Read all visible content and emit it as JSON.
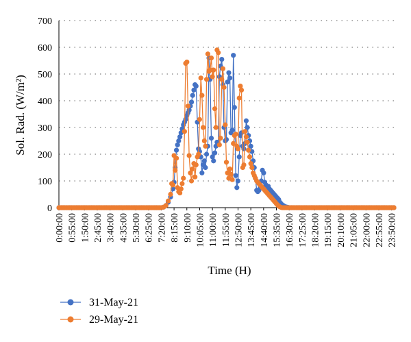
{
  "chart_data": {
    "type": "line",
    "title": "",
    "xlabel": "Time (H)",
    "ylabel": "Sol. Rad. (W/m²)",
    "ylim": [
      0,
      700
    ],
    "yticks": [
      "0",
      "100",
      "200",
      "300",
      "400",
      "500",
      "600",
      "700"
    ],
    "x_tick_labels": [
      "0:00:00",
      "0:55:00",
      "1:50:00",
      "2:45:00",
      "3:40:00",
      "4:35:00",
      "5:30:00",
      "6:25:00",
      "7:20:00",
      "8:15:00",
      "9:10:00",
      "10:05:00",
      "11:00:00",
      "11:55:00",
      "12:50:00",
      "13:45:00",
      "14:40:00",
      "15:35:00",
      "16:30:00",
      "17:25:00",
      "18:20:00",
      "19:15:00",
      "20:10:00",
      "21:05:00",
      "22:00:00",
      "22:55:00",
      "23:50:00"
    ],
    "x_unit": "hours of day (0-24), sampled every 5 min",
    "grid": "horizontal dotted",
    "legend_position": "bottom-left",
    "series": [
      {
        "name": "31-May-21",
        "color": "#4472c4",
        "points": [
          [
            0,
            0
          ],
          [
            7.33,
            0
          ],
          [
            7.5,
            2
          ],
          [
            7.67,
            8
          ],
          [
            7.83,
            20
          ],
          [
            8.0,
            40
          ],
          [
            8.17,
            70
          ],
          [
            8.25,
            95
          ],
          [
            8.33,
            150
          ],
          [
            8.42,
            215
          ],
          [
            8.5,
            235
          ],
          [
            8.58,
            250
          ],
          [
            8.67,
            265
          ],
          [
            8.75,
            280
          ],
          [
            8.83,
            295
          ],
          [
            8.92,
            310
          ],
          [
            9.0,
            320
          ],
          [
            9.08,
            330
          ],
          [
            9.17,
            345
          ],
          [
            9.25,
            355
          ],
          [
            9.33,
            365
          ],
          [
            9.42,
            380
          ],
          [
            9.5,
            395
          ],
          [
            9.58,
            420
          ],
          [
            9.67,
            440
          ],
          [
            9.75,
            460
          ],
          [
            9.83,
            455
          ],
          [
            9.92,
            320
          ],
          [
            10.0,
            220
          ],
          [
            10.08,
            210
          ],
          [
            10.17,
            190
          ],
          [
            10.25,
            130
          ],
          [
            10.33,
            160
          ],
          [
            10.42,
            175
          ],
          [
            10.5,
            150
          ],
          [
            10.58,
            200
          ],
          [
            10.67,
            230
          ],
          [
            10.75,
            560
          ],
          [
            10.83,
            480
          ],
          [
            10.92,
            260
          ],
          [
            11.0,
            190
          ],
          [
            11.08,
            175
          ],
          [
            11.17,
            205
          ],
          [
            11.25,
            230
          ],
          [
            11.33,
            245
          ],
          [
            11.42,
            240
          ],
          [
            11.5,
            490
          ],
          [
            11.58,
            530
          ],
          [
            11.67,
            555
          ],
          [
            11.75,
            460
          ],
          [
            11.83,
            300
          ],
          [
            11.92,
            250
          ],
          [
            12.0,
            255
          ],
          [
            12.08,
            470
          ],
          [
            12.17,
            505
          ],
          [
            12.25,
            485
          ],
          [
            12.33,
            280
          ],
          [
            12.42,
            290
          ],
          [
            12.5,
            570
          ],
          [
            12.58,
            375
          ],
          [
            12.67,
            120
          ],
          [
            12.75,
            75
          ],
          [
            12.83,
            100
          ],
          [
            12.92,
            190
          ],
          [
            13.0,
            270
          ],
          [
            13.08,
            280
          ],
          [
            13.17,
            230
          ],
          [
            13.25,
            220
          ],
          [
            13.33,
            240
          ],
          [
            13.42,
            325
          ],
          [
            13.5,
            300
          ],
          [
            13.58,
            270
          ],
          [
            13.67,
            250
          ],
          [
            13.75,
            230
          ],
          [
            13.83,
            210
          ],
          [
            13.92,
            175
          ],
          [
            14.0,
            150
          ],
          [
            14.08,
            110
          ],
          [
            14.17,
            65
          ],
          [
            14.25,
            60
          ],
          [
            14.33,
            65
          ],
          [
            14.42,
            75
          ],
          [
            14.5,
            100
          ],
          [
            14.58,
            140
          ],
          [
            14.67,
            130
          ],
          [
            14.75,
            95
          ],
          [
            14.83,
            85
          ],
          [
            14.92,
            75
          ],
          [
            15.0,
            80
          ],
          [
            15.08,
            70
          ],
          [
            15.17,
            65
          ],
          [
            15.25,
            60
          ],
          [
            15.33,
            55
          ],
          [
            15.42,
            50
          ],
          [
            15.5,
            45
          ],
          [
            15.58,
            40
          ],
          [
            15.67,
            35
          ],
          [
            15.75,
            30
          ],
          [
            15.83,
            20
          ],
          [
            15.92,
            15
          ],
          [
            16.0,
            10
          ],
          [
            16.08,
            8
          ],
          [
            16.17,
            5
          ],
          [
            16.25,
            3
          ],
          [
            16.33,
            2
          ],
          [
            16.42,
            1
          ],
          [
            16.5,
            0
          ],
          [
            24,
            0
          ]
        ]
      },
      {
        "name": "29-May-21",
        "color": "#ed7d31",
        "points": [
          [
            0,
            0
          ],
          [
            7.33,
            0
          ],
          [
            7.5,
            2
          ],
          [
            7.67,
            8
          ],
          [
            7.83,
            25
          ],
          [
            8.0,
            50
          ],
          [
            8.08,
            90
          ],
          [
            8.17,
            85
          ],
          [
            8.25,
            195
          ],
          [
            8.33,
            140
          ],
          [
            8.42,
            185
          ],
          [
            8.5,
            75
          ],
          [
            8.58,
            60
          ],
          [
            8.67,
            55
          ],
          [
            8.75,
            70
          ],
          [
            8.83,
            90
          ],
          [
            8.92,
            110
          ],
          [
            9.0,
            285
          ],
          [
            9.08,
            540
          ],
          [
            9.17,
            545
          ],
          [
            9.25,
            380
          ],
          [
            9.33,
            195
          ],
          [
            9.42,
            130
          ],
          [
            9.5,
            100
          ],
          [
            9.58,
            145
          ],
          [
            9.67,
            165
          ],
          [
            9.75,
            115
          ],
          [
            9.83,
            160
          ],
          [
            9.92,
            190
          ],
          [
            10.0,
            200
          ],
          [
            10.08,
            330
          ],
          [
            10.17,
            485
          ],
          [
            10.25,
            420
          ],
          [
            10.33,
            300
          ],
          [
            10.42,
            250
          ],
          [
            10.5,
            230
          ],
          [
            10.58,
            480
          ],
          [
            10.67,
            575
          ],
          [
            10.75,
            510
          ],
          [
            10.83,
            515
          ],
          [
            10.92,
            560
          ],
          [
            11.0,
            490
          ],
          [
            11.08,
            515
          ],
          [
            11.17,
            370
          ],
          [
            11.25,
            300
          ],
          [
            11.33,
            590
          ],
          [
            11.42,
            580
          ],
          [
            11.5,
            235
          ],
          [
            11.58,
            260
          ],
          [
            11.67,
            480
          ],
          [
            11.75,
            520
          ],
          [
            11.83,
            450
          ],
          [
            11.92,
            310
          ],
          [
            12.0,
            170
          ],
          [
            12.08,
            130
          ],
          [
            12.17,
            110
          ],
          [
            12.25,
            145
          ],
          [
            12.33,
            125
          ],
          [
            12.42,
            105
          ],
          [
            12.5,
            240
          ],
          [
            12.58,
            270
          ],
          [
            12.67,
            275
          ],
          [
            12.75,
            230
          ],
          [
            12.83,
            220
          ],
          [
            12.92,
            410
          ],
          [
            13.0,
            455
          ],
          [
            13.08,
            440
          ],
          [
            13.17,
            150
          ],
          [
            13.25,
            160
          ],
          [
            13.33,
            285
          ],
          [
            13.42,
            265
          ],
          [
            13.5,
            245
          ],
          [
            13.58,
            215
          ],
          [
            13.67,
            190
          ],
          [
            13.75,
            165
          ],
          [
            13.83,
            150
          ],
          [
            13.92,
            130
          ],
          [
            14.0,
            120
          ],
          [
            14.08,
            110
          ],
          [
            14.17,
            100
          ],
          [
            14.25,
            95
          ],
          [
            14.33,
            90
          ],
          [
            14.42,
            85
          ],
          [
            14.5,
            80
          ],
          [
            14.58,
            75
          ],
          [
            14.67,
            70
          ],
          [
            14.75,
            65
          ],
          [
            14.83,
            60
          ],
          [
            14.92,
            55
          ],
          [
            15.0,
            50
          ],
          [
            15.08,
            45
          ],
          [
            15.17,
            40
          ],
          [
            15.25,
            35
          ],
          [
            15.33,
            30
          ],
          [
            15.42,
            25
          ],
          [
            15.5,
            20
          ],
          [
            15.58,
            15
          ],
          [
            15.67,
            10
          ],
          [
            15.75,
            6
          ],
          [
            15.83,
            3
          ],
          [
            15.92,
            1
          ],
          [
            16.0,
            0
          ],
          [
            24,
            0
          ]
        ]
      }
    ]
  }
}
